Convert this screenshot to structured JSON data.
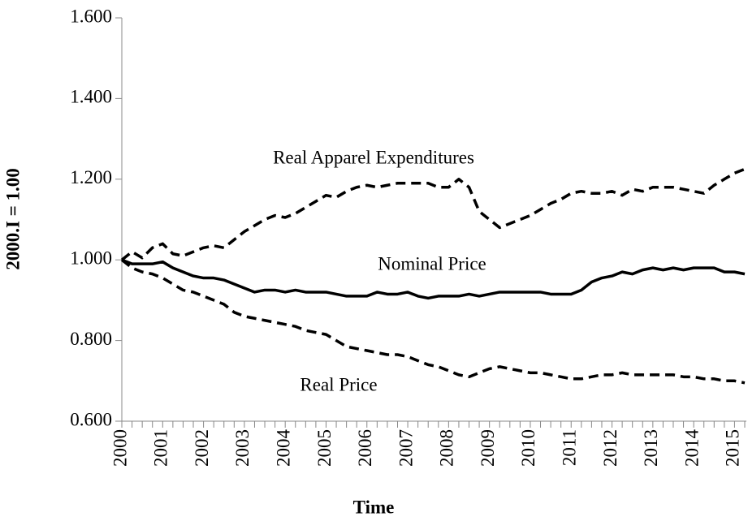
{
  "chart_data": {
    "type": "line",
    "x_label": "Time",
    "y_label": "2000.I = 1.00",
    "categories": [
      "2000",
      null,
      null,
      null,
      "2001",
      null,
      null,
      null,
      "2002",
      null,
      null,
      null,
      "2003",
      null,
      null,
      null,
      "2004",
      null,
      null,
      null,
      "2005",
      null,
      null,
      null,
      "2006",
      null,
      null,
      null,
      "2007",
      null,
      null,
      null,
      "2008",
      null,
      null,
      null,
      "2009",
      null,
      null,
      null,
      "2010",
      null,
      null,
      null,
      "2011",
      null,
      null,
      null,
      "2012",
      null,
      null,
      null,
      "2013",
      null,
      null,
      null,
      "2014",
      null,
      null,
      null,
      "2015",
      null
    ],
    "series": [
      {
        "name": "Real Apparel Expenditures",
        "color": "#000000",
        "dash": "dashed",
        "values": [
          1.0,
          1.02,
          1.005,
          1.03,
          1.04,
          1.015,
          1.01,
          1.02,
          1.03,
          1.035,
          1.03,
          1.05,
          1.07,
          1.085,
          1.1,
          1.11,
          1.105,
          1.115,
          1.13,
          1.145,
          1.16,
          1.155,
          1.17,
          1.18,
          1.185,
          1.18,
          1.185,
          1.19,
          1.19,
          1.19,
          1.19,
          1.18,
          1.18,
          1.2,
          1.18,
          1.12,
          1.1,
          1.08,
          1.09,
          1.1,
          1.11,
          1.125,
          1.14,
          1.15,
          1.165,
          1.17,
          1.165,
          1.165,
          1.17,
          1.16,
          1.175,
          1.17,
          1.18,
          1.18,
          1.18,
          1.175,
          1.17,
          1.165,
          1.185,
          1.2,
          1.215,
          1.225
        ]
      },
      {
        "name": "Nominal Price",
        "color": "#000000",
        "dash": "solid",
        "values": [
          1.0,
          0.99,
          0.99,
          0.99,
          0.995,
          0.98,
          0.97,
          0.96,
          0.955,
          0.955,
          0.95,
          0.94,
          0.93,
          0.92,
          0.925,
          0.925,
          0.92,
          0.925,
          0.92,
          0.92,
          0.92,
          0.915,
          0.91,
          0.91,
          0.91,
          0.92,
          0.915,
          0.915,
          0.92,
          0.91,
          0.905,
          0.91,
          0.91,
          0.91,
          0.915,
          0.91,
          0.915,
          0.92,
          0.92,
          0.92,
          0.92,
          0.92,
          0.915,
          0.915,
          0.915,
          0.925,
          0.945,
          0.955,
          0.96,
          0.97,
          0.965,
          0.975,
          0.98,
          0.975,
          0.98,
          0.975,
          0.98,
          0.98,
          0.98,
          0.97,
          0.97,
          0.965
        ]
      },
      {
        "name": "Real Price",
        "color": "#000000",
        "dash": "dashed",
        "values": [
          1.0,
          0.98,
          0.97,
          0.965,
          0.955,
          0.94,
          0.925,
          0.92,
          0.91,
          0.9,
          0.89,
          0.87,
          0.86,
          0.855,
          0.85,
          0.845,
          0.84,
          0.835,
          0.825,
          0.82,
          0.815,
          0.8,
          0.785,
          0.78,
          0.775,
          0.77,
          0.765,
          0.765,
          0.76,
          0.75,
          0.74,
          0.735,
          0.725,
          0.715,
          0.71,
          0.72,
          0.73,
          0.735,
          0.73,
          0.725,
          0.72,
          0.72,
          0.715,
          0.71,
          0.705,
          0.705,
          0.71,
          0.715,
          0.715,
          0.72,
          0.715,
          0.715,
          0.715,
          0.715,
          0.715,
          0.71,
          0.71,
          0.705,
          0.705,
          0.7,
          0.7,
          0.695
        ]
      }
    ],
    "ylim": [
      0.6,
      1.6
    ],
    "yticks": [
      {
        "value": 0.6,
        "label": "0.600"
      },
      {
        "value": 0.8,
        "label": "0.800"
      },
      {
        "value": 1.0,
        "label": "1.000"
      },
      {
        "value": 1.2,
        "label": "1.200"
      },
      {
        "value": 1.4,
        "label": "1.400"
      },
      {
        "value": 1.6,
        "label": "1.600"
      }
    ],
    "grid": false,
    "legend": false
  }
}
